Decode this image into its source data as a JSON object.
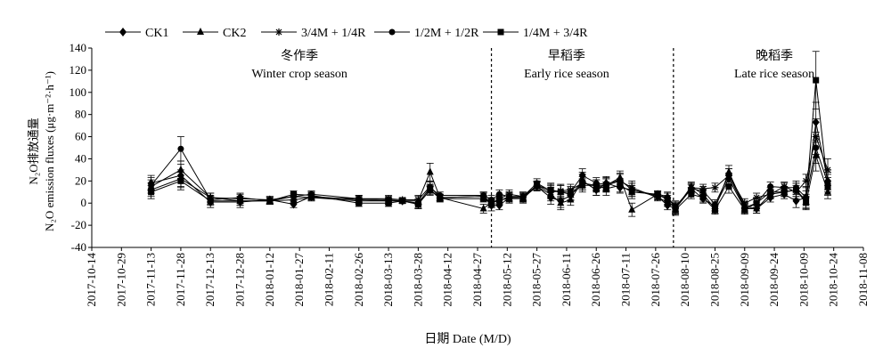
{
  "chart_data": {
    "type": "line",
    "title": "",
    "xlabel": "日期 Date (M/D)",
    "ylabel_line1": "N₂O排放通量",
    "ylabel_line2": "N₂O emission fluxes (μg·m⁻²·h⁻¹)",
    "ylim": [
      -40,
      140
    ],
    "yticks": [
      -40,
      -20,
      0,
      20,
      40,
      60,
      80,
      100,
      120,
      140
    ],
    "xlim": [
      "2017-10-14",
      "2018-11-08"
    ],
    "xticks": [
      "2017-10-14",
      "2017-10-29",
      "2017-11-13",
      "2017-11-28",
      "2017-12-13",
      "2017-12-28",
      "2018-01-12",
      "2018-01-27",
      "2018-02-11",
      "2018-02-26",
      "2018-03-13",
      "2018-03-28",
      "2018-04-12",
      "2018-04-27",
      "2018-05-12",
      "2018-05-27",
      "2018-06-11",
      "2018-06-26",
      "2018-07-11",
      "2018-07-26",
      "2018-08-10",
      "2018-08-25",
      "2018-09-09",
      "2018-09-24",
      "2018-10-09",
      "2018-10-24",
      "2018-11-08"
    ],
    "legend_position": "top",
    "season_dividers": [
      "2018-05-04",
      "2018-08-04"
    ],
    "seasons": [
      {
        "cn": "冬作季",
        "en": "Winter crop season",
        "center": "2018-01-27"
      },
      {
        "cn": "早稻季",
        "en": "Early rice season",
        "center": "2018-06-11"
      },
      {
        "cn": "晚稻季",
        "en": "Late rice season",
        "center": "2018-09-24"
      }
    ],
    "x": [
      "2017-11-13",
      "2017-11-28",
      "2017-12-13",
      "2017-12-28",
      "2018-01-12",
      "2018-01-24",
      "2018-02-02",
      "2018-02-26",
      "2018-03-13",
      "2018-03-20",
      "2018-03-28",
      "2018-04-03",
      "2018-04-08",
      "2018-04-30",
      "2018-05-04",
      "2018-05-08",
      "2018-05-13",
      "2018-05-20",
      "2018-05-27",
      "2018-06-03",
      "2018-06-08",
      "2018-06-13",
      "2018-06-19",
      "2018-06-26",
      "2018-07-01",
      "2018-07-08",
      "2018-07-14",
      "2018-07-27",
      "2018-08-01",
      "2018-08-05",
      "2018-08-13",
      "2018-08-19",
      "2018-08-25",
      "2018-09-01",
      "2018-09-09",
      "2018-09-15",
      "2018-09-22",
      "2018-09-29",
      "2018-10-05",
      "2018-10-10",
      "2018-10-15",
      "2018-10-21"
    ],
    "series": [
      {
        "name": "CK1",
        "marker": "diamond",
        "values": [
          18,
          25,
          1,
          1,
          3,
          -1,
          6,
          3,
          2,
          2,
          -1,
          12,
          5,
          6,
          -2,
          -2,
          5,
          5,
          15,
          5,
          2,
          7,
          20,
          12,
          18,
          14,
          12,
          6,
          -2,
          -5,
          13,
          4,
          -3,
          22,
          -5,
          -5,
          5,
          8,
          2,
          5,
          73,
          20
        ],
        "errors": [
          7,
          10,
          5,
          5,
          3,
          3,
          3,
          3,
          3,
          2,
          4,
          4,
          3,
          3,
          5,
          4,
          4,
          4,
          4,
          6,
          6,
          5,
          8,
          5,
          6,
          5,
          6,
          3,
          4,
          5,
          4,
          4,
          4,
          5,
          4,
          4,
          4,
          4,
          6,
          6,
          18,
          8
        ]
      },
      {
        "name": "CK2",
        "marker": "triangle",
        "values": [
          15,
          30,
          5,
          2,
          2,
          3,
          5,
          2,
          2,
          2,
          2,
          28,
          5,
          -5,
          1,
          2,
          6,
          5,
          15,
          8,
          0,
          3,
          20,
          12,
          16,
          23,
          -6,
          8,
          6,
          -5,
          15,
          8,
          -5,
          28,
          -3,
          -5,
          8,
          10,
          12,
          0,
          43,
          10
        ],
        "errors": [
          6,
          8,
          4,
          4,
          3,
          3,
          3,
          3,
          3,
          2,
          4,
          8,
          3,
          4,
          4,
          4,
          4,
          4,
          4,
          6,
          6,
          5,
          6,
          5,
          6,
          6,
          6,
          3,
          4,
          5,
          4,
          4,
          4,
          6,
          4,
          4,
          4,
          4,
          6,
          6,
          14,
          6
        ]
      },
      {
        "name": "3/4M + 1/4R",
        "marker": "star",
        "values": [
          12,
          22,
          5,
          4,
          3,
          6,
          5,
          4,
          4,
          3,
          3,
          15,
          5,
          6,
          0,
          4,
          8,
          6,
          16,
          10,
          11,
          12,
          18,
          16,
          16,
          20,
          14,
          5,
          1,
          -4,
          14,
          13,
          14,
          25,
          0,
          5,
          8,
          15,
          10,
          20,
          60,
          30
        ],
        "errors": [
          6,
          8,
          4,
          4,
          3,
          3,
          3,
          3,
          3,
          2,
          4,
          5,
          3,
          4,
          4,
          4,
          4,
          4,
          4,
          6,
          6,
          5,
          6,
          5,
          6,
          6,
          6,
          3,
          4,
          5,
          4,
          4,
          4,
          6,
          4,
          4,
          4,
          4,
          6,
          6,
          16,
          10
        ]
      },
      {
        "name": "1/2M + 1/2R",
        "marker": "circle",
        "values": [
          16,
          49,
          3,
          5,
          2,
          6,
          8,
          4,
          3,
          2,
          0,
          14,
          7,
          7,
          3,
          8,
          6,
          6,
          18,
          11,
          10,
          10,
          25,
          18,
          17,
          21,
          12,
          7,
          5,
          -3,
          13,
          11,
          -1,
          25,
          -4,
          0,
          15,
          14,
          14,
          5,
          50,
          18
        ],
        "errors": [
          7,
          11,
          4,
          4,
          3,
          3,
          3,
          3,
          3,
          2,
          4,
          5,
          3,
          3,
          4,
          4,
          4,
          4,
          4,
          6,
          6,
          5,
          6,
          5,
          6,
          6,
          6,
          3,
          4,
          5,
          4,
          4,
          4,
          6,
          4,
          4,
          4,
          4,
          6,
          10,
          14,
          8
        ]
      },
      {
        "name": "1/4M + 3/4R",
        "marker": "square",
        "values": [
          10,
          20,
          2,
          2,
          2,
          8,
          7,
          0,
          0,
          2,
          -1,
          12,
          4,
          4,
          0,
          3,
          4,
          4,
          16,
          12,
          10,
          8,
          16,
          16,
          13,
          16,
          10,
          8,
          3,
          -6,
          8,
          5,
          -6,
          15,
          -6,
          0,
          10,
          10,
          12,
          2,
          111,
          15
        ],
        "errors": [
          6,
          8,
          4,
          4,
          3,
          3,
          3,
          3,
          3,
          2,
          4,
          5,
          3,
          3,
          4,
          4,
          4,
          4,
          4,
          6,
          6,
          5,
          6,
          5,
          6,
          6,
          6,
          3,
          4,
          5,
          4,
          4,
          4,
          6,
          4,
          4,
          4,
          4,
          6,
          6,
          26,
          8
        ]
      }
    ]
  }
}
